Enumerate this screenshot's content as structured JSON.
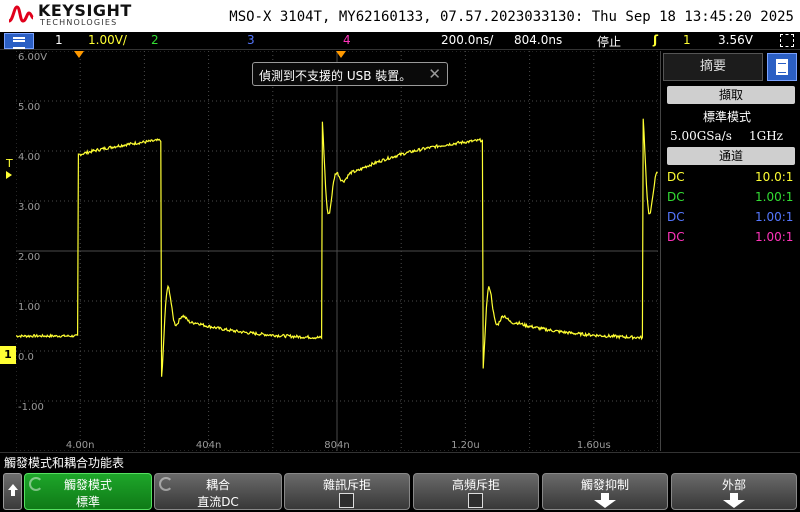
{
  "header": {
    "brand": "KEYSIGHT",
    "brand_sub": "TECHNOLOGIES",
    "instrument_info": "MSO-X 3104T, MY62160133, 07.57.2023033130: Thu Sep 18 13:45:20 2025"
  },
  "status_bar": {
    "ch1_num": "1",
    "ch1_scale": "1.00V/",
    "ch2_num": "2",
    "ch3_num": "3",
    "ch4_num": "4",
    "timebase": "200.0ns/",
    "delay": "804.0ns",
    "run_state": "停止",
    "trigger_symbol": "ʃ",
    "trigger_source": "1",
    "trigger_level": "3.56V"
  },
  "plot": {
    "y_tick_labels": [
      "6.00V",
      "5.00",
      "4.00",
      "3.00",
      "2.00",
      "1.00",
      "0.0",
      "-1.00"
    ],
    "x_tick_labels": [
      "4.00n",
      "404n",
      "804n",
      "1.20u",
      "1.60us"
    ],
    "trigger_level_marker": "T",
    "ground_marker": "1"
  },
  "toast": {
    "message": "偵測到不支援的 USB 裝置。",
    "close_glyph": "✕"
  },
  "right_panel": {
    "tab_label": "摘要",
    "acquire_header": "擷取",
    "acquire_mode": "標準模式",
    "sample_rate": "5.00GSa/s",
    "bandwidth": "1GHz",
    "channels_header": "通道",
    "channels": [
      {
        "coupling": "DC",
        "probe": "10.0:1",
        "color": "#ffff33"
      },
      {
        "coupling": "DC",
        "probe": "1.00:1",
        "color": "#33dd33"
      },
      {
        "coupling": "DC",
        "probe": "1.00:1",
        "color": "#5577ff"
      },
      {
        "coupling": "DC",
        "probe": "1.00:1",
        "color": "#ff33bb"
      }
    ]
  },
  "softkeys": {
    "caption": "觸發模式和耦合功能表",
    "keys": [
      {
        "title": "觸發模式",
        "value": "標準"
      },
      {
        "title": "耦合",
        "value": "直流DC"
      },
      {
        "title": "雜訊斥拒",
        "value": ""
      },
      {
        "title": "高頻斥拒",
        "value": ""
      },
      {
        "title": "觸發抑制",
        "value": ""
      },
      {
        "title": "外部",
        "value": ""
      }
    ]
  },
  "colors": {
    "ch1": "#ffff33",
    "ch2": "#33dd33",
    "ch3": "#5577ff",
    "ch4": "#ff33bb",
    "trigger_marker": "#ff9900",
    "menu_blue": "#2b5fc4",
    "softkey_active": "#1a9a26"
  }
}
